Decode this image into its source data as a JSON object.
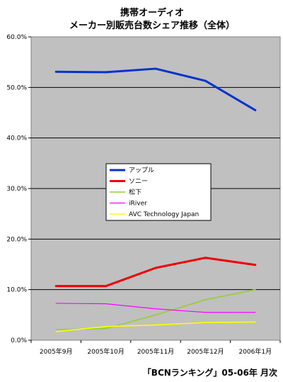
{
  "chart_data": {
    "type": "line",
    "title_line1": "携帯オーディオ",
    "title_line2": "メーカー別販売台数シェア推移（全体）",
    "source_note": "「BCNランキング」05-06年 月次",
    "categories": [
      "2005年9月",
      "2005年10月",
      "2005年11月",
      "2005年12月",
      "2006年1月"
    ],
    "y_ticks": [
      "0.0%",
      "10.0%",
      "20.0%",
      "30.0%",
      "40.0%",
      "50.0%",
      "60.0%"
    ],
    "ylim": [
      0,
      60
    ],
    "grid": true,
    "legend_position": "center",
    "series": [
      {
        "name": "アップル",
        "color": "#0033cc",
        "width": 3,
        "values": [
          53.1,
          53.0,
          53.7,
          51.3,
          45.5
        ]
      },
      {
        "name": "ソニー",
        "color": "#ee0000",
        "width": 3,
        "values": [
          10.7,
          10.7,
          14.3,
          16.3,
          14.9
        ]
      },
      {
        "name": "松下",
        "color": "#99cc33",
        "width": 1.6,
        "values": [
          2.1,
          2.3,
          5.0,
          8.0,
          10.0
        ]
      },
      {
        "name": "iRiver",
        "color": "#ff00ff",
        "width": 1.2,
        "values": [
          7.3,
          7.2,
          6.2,
          5.5,
          5.5
        ]
      },
      {
        "name": "AVC Technology Japan",
        "color": "#ffff00",
        "width": 1.6,
        "values": [
          1.7,
          2.7,
          3.0,
          3.5,
          3.6
        ]
      }
    ]
  }
}
